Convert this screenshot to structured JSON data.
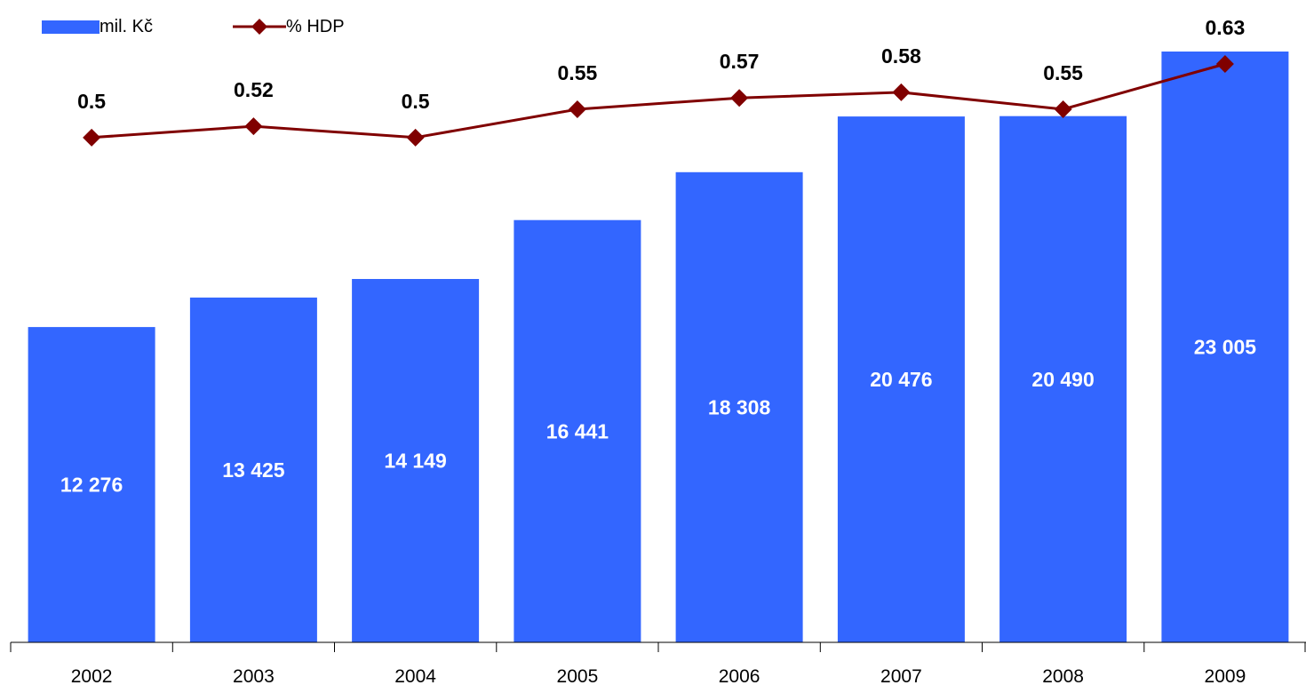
{
  "legend": {
    "bar_label": "mil. Kč",
    "line_label": "% HDP"
  },
  "colors": {
    "bar": "#3366FF",
    "line": "#800000",
    "axis": "#000000",
    "bar_label": "#FFFFFF",
    "line_label": "#000000"
  },
  "chart_data": {
    "type": "bar",
    "legend_position": "top-left",
    "grid": false,
    "categories": [
      "2002",
      "2003",
      "2004",
      "2005",
      "2006",
      "2007",
      "2008",
      "2009"
    ],
    "series": [
      {
        "name": "mil. Kč",
        "type": "bar",
        "values": [
          12276,
          13425,
          14149,
          16441,
          18308,
          20476,
          20490,
          23005
        ],
        "labels": [
          "12 276",
          "13 425",
          "14 149",
          "16 441",
          "18 308",
          "20 476",
          "20 490",
          "23 005"
        ]
      },
      {
        "name": "% HDP",
        "type": "line",
        "marker": "diamond",
        "values": [
          0.5,
          0.52,
          0.5,
          0.55,
          0.57,
          0.58,
          0.55,
          0.63
        ],
        "labels": [
          "0.5",
          "0.52",
          "0.5",
          "0.55",
          "0.57",
          "0.58",
          "0.55",
          "0.63"
        ]
      }
    ],
    "ylim_primary": [
      0,
      23005
    ],
    "ylim_secondary": [
      0.2,
      0.63
    ]
  }
}
